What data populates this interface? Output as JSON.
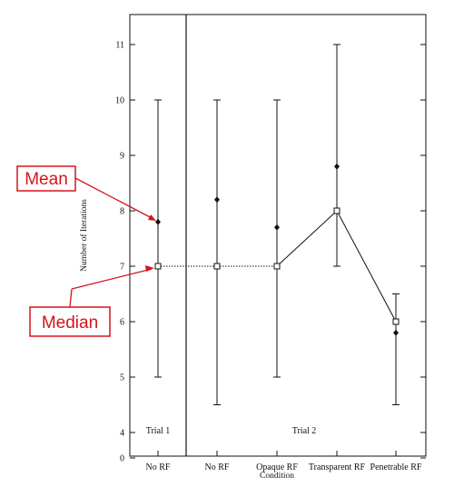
{
  "chart_data": {
    "type": "scatter",
    "title": "",
    "xlabel": "Condition",
    "ylabel": "Number of Iterations",
    "categories": [
      "No RF",
      "No RF",
      "Opaque RF",
      "Transparent RF",
      "Penetrable RF"
    ],
    "panels": [
      {
        "label": "Trial 1",
        "categories": [
          0
        ]
      },
      {
        "label": "Trial 2",
        "categories": [
          1,
          2,
          3,
          4
        ]
      }
    ],
    "series": [
      {
        "name": "Mean",
        "values": [
          7.8,
          8.2,
          7.7,
          8.8,
          5.8
        ]
      },
      {
        "name": "Median",
        "values": [
          7,
          7,
          7,
          8,
          6
        ]
      }
    ],
    "range_min": [
      5,
      4.5,
      5,
      7,
      4.5
    ],
    "range_max": [
      10,
      10,
      10,
      11,
      6.5
    ],
    "yticks": [
      0,
      4,
      5,
      6,
      7,
      8,
      9,
      10,
      11
    ],
    "ylim_note": "axis break between 0 and 4",
    "callouts": {
      "mean": "Mean",
      "median": "Median"
    },
    "colors": {
      "callout": "#d4141a",
      "ink": "#111111"
    }
  }
}
